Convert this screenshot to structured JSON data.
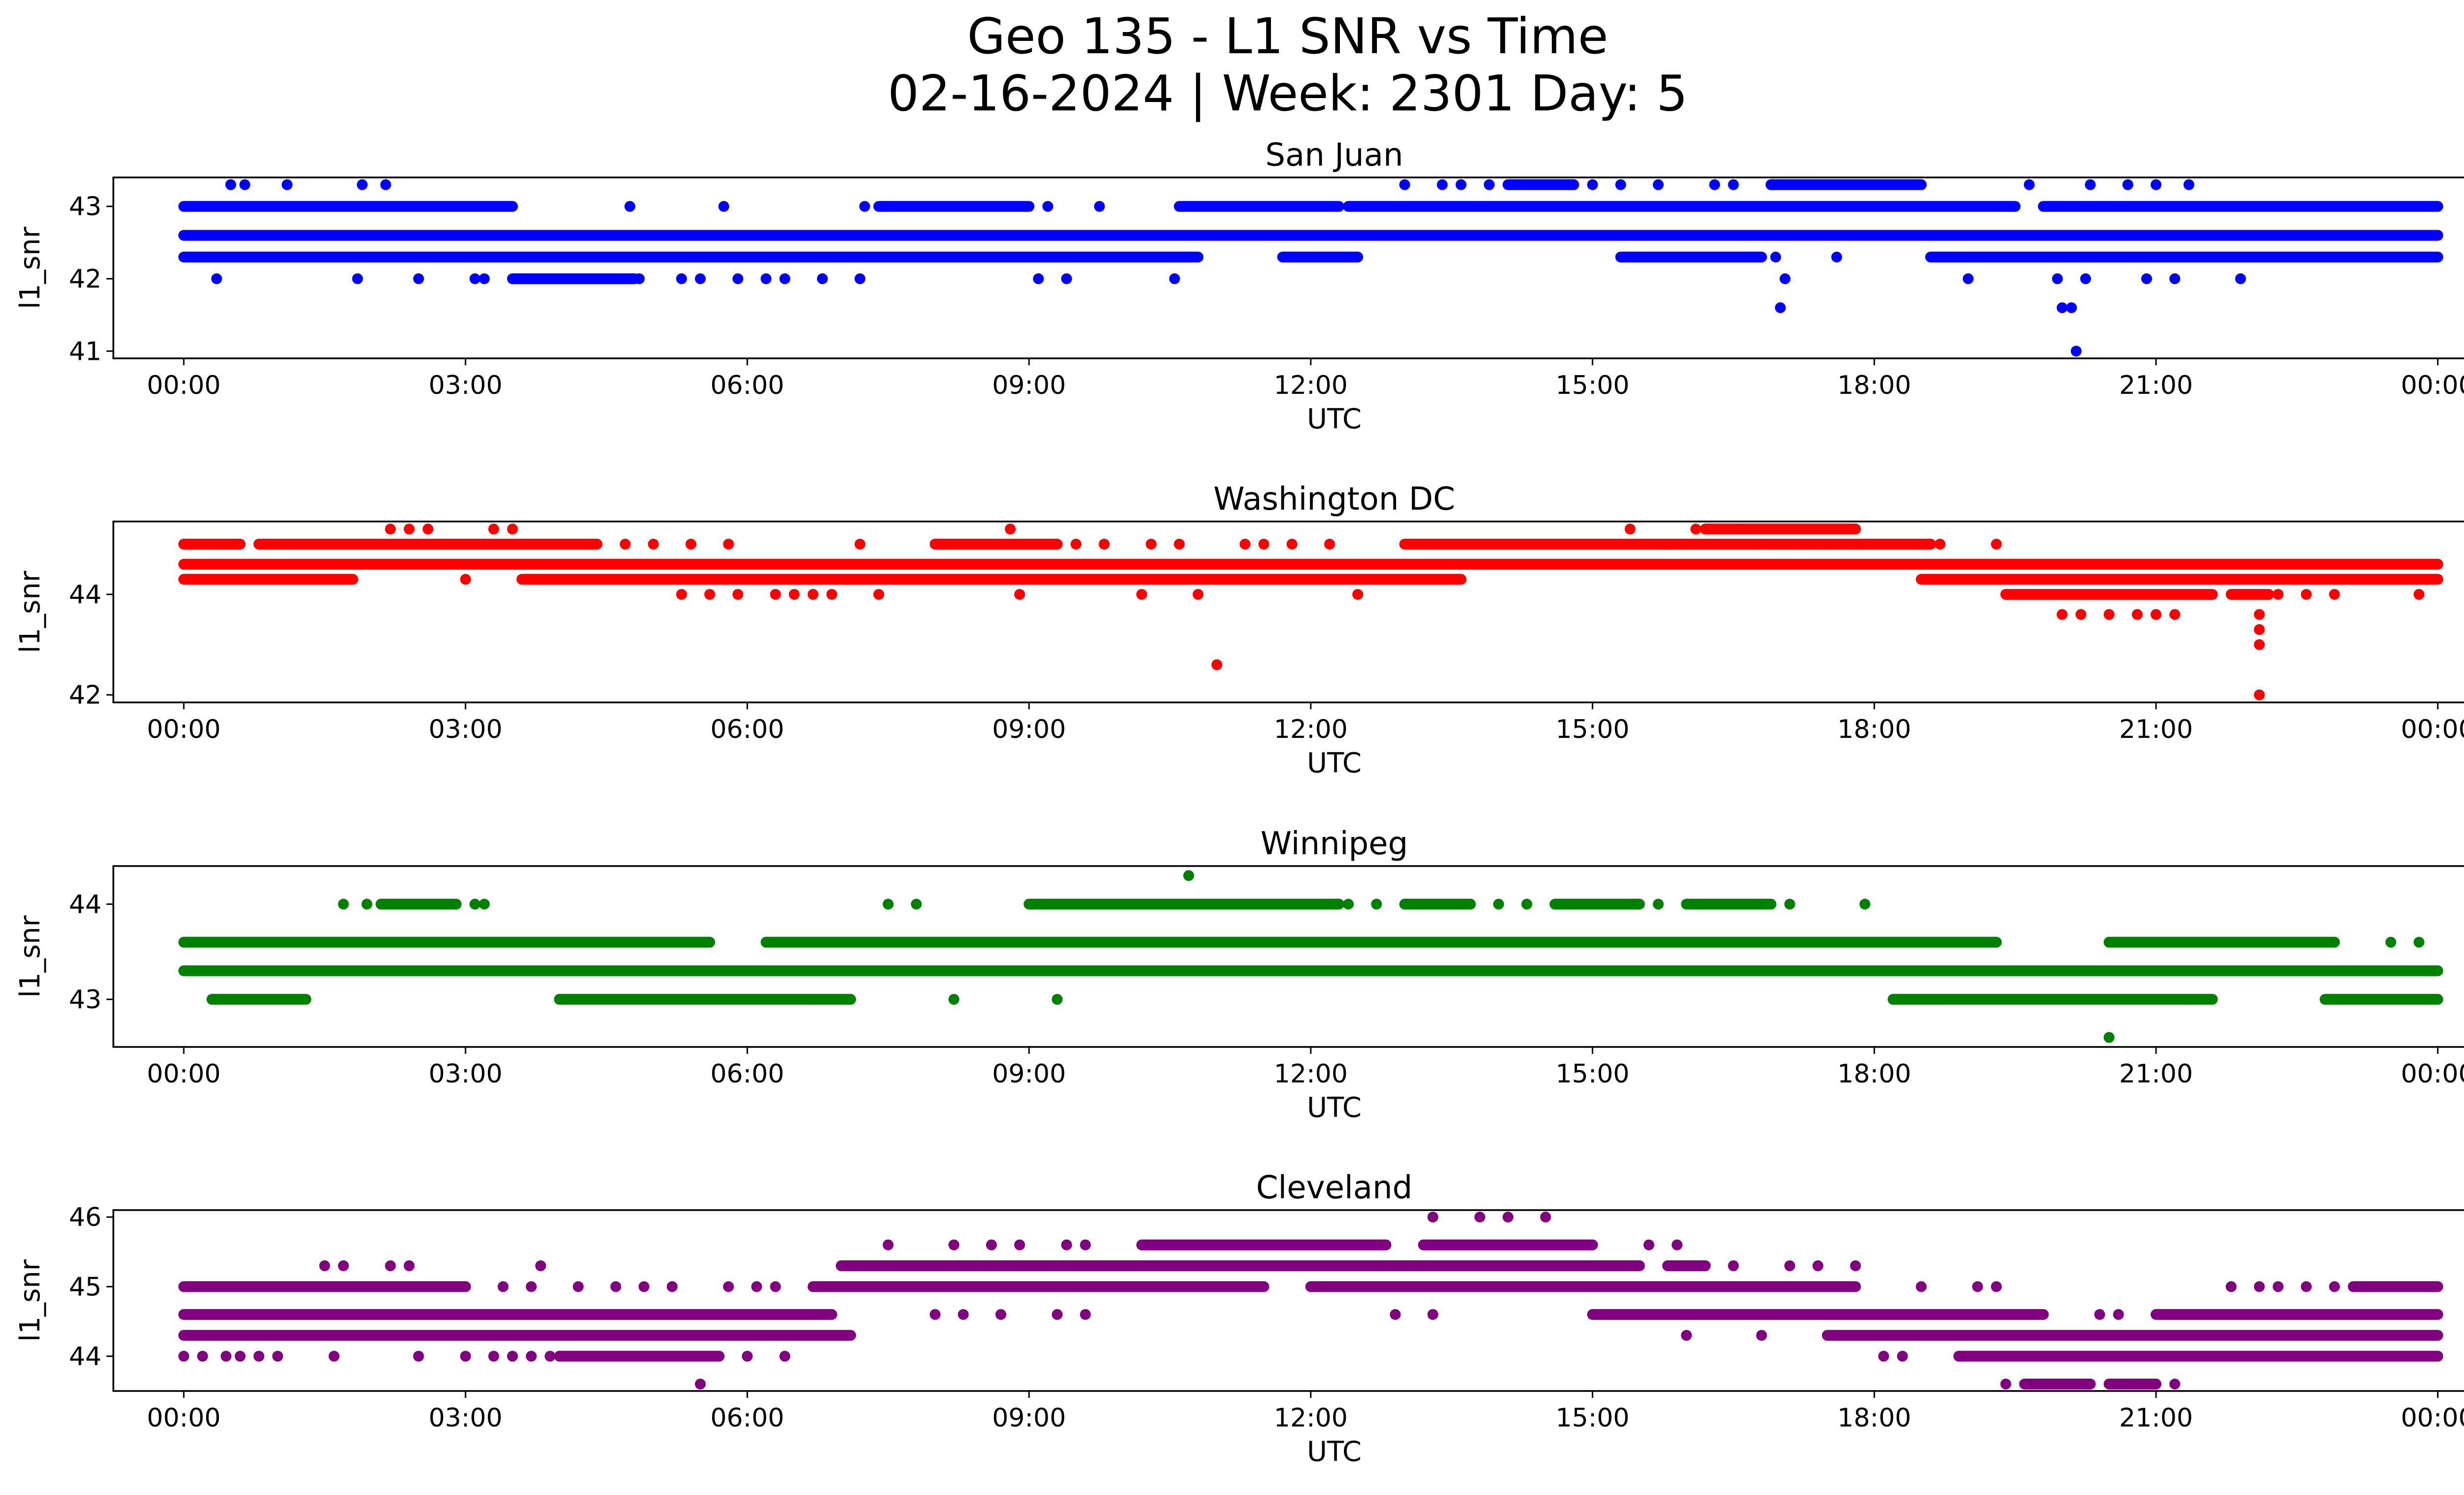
{
  "figure": {
    "title_line1": "Geo 135 - L1 SNR vs Time",
    "title_line2": "02-16-2024 | Week: 2301 Day: 5"
  },
  "chart_data": [
    {
      "type": "scatter",
      "title": "San Juan",
      "xlabel": "UTC",
      "ylabel": "l1_snr",
      "color": "#0000ff",
      "xlim": [
        -0.75,
        25.25
      ],
      "ylim": [
        40.9,
        43.4
      ],
      "x_ticks": [
        0,
        3,
        6,
        9,
        12,
        15,
        18,
        21,
        24
      ],
      "x_tick_labels": [
        "00:00",
        "03:00",
        "06:00",
        "09:00",
        "12:00",
        "15:00",
        "18:00",
        "21:00",
        "00:00"
      ],
      "y_ticks": [
        41,
        42,
        43
      ],
      "y_tick_labels": [
        "41",
        "42",
        "43"
      ],
      "bands": [
        {
          "y": 42.6,
          "start": 0,
          "end": 24
        },
        {
          "y": 42.3,
          "start": 0,
          "end": 10.8
        },
        {
          "y": 42.3,
          "start": 11.7,
          "end": 12.5
        },
        {
          "y": 42.3,
          "start": 15.3,
          "end": 16.8
        },
        {
          "y": 42.3,
          "start": 18.6,
          "end": 24
        },
        {
          "y": 43.0,
          "start": 0,
          "end": 3.5
        },
        {
          "y": 43.0,
          "start": 7.4,
          "end": 9.0
        },
        {
          "y": 43.0,
          "start": 10.6,
          "end": 12.3
        },
        {
          "y": 43.0,
          "start": 12.4,
          "end": 19.5
        },
        {
          "y": 43.0,
          "start": 19.8,
          "end": 24
        },
        {
          "y": 42.0,
          "start": 3.5,
          "end": 4.8
        },
        {
          "y": 43.3,
          "start": 14.1,
          "end": 14.8
        },
        {
          "y": 43.3,
          "start": 16.9,
          "end": 18.5
        }
      ],
      "points": [
        [
          0.35,
          42.0
        ],
        [
          0.5,
          43.3
        ],
        [
          0.65,
          43.3
        ],
        [
          1.1,
          43.3
        ],
        [
          1.85,
          42.0
        ],
        [
          1.9,
          43.3
        ],
        [
          2.15,
          43.3
        ],
        [
          2.5,
          42.0
        ],
        [
          3.1,
          42.0
        ],
        [
          3.2,
          42.0
        ],
        [
          4.85,
          42.0
        ],
        [
          4.75,
          43.0
        ],
        [
          5.3,
          42.0
        ],
        [
          5.5,
          42.0
        ],
        [
          5.75,
          43.0
        ],
        [
          5.9,
          42.0
        ],
        [
          6.2,
          42.0
        ],
        [
          6.4,
          42.0
        ],
        [
          6.8,
          42.0
        ],
        [
          7.2,
          42.0
        ],
        [
          7.25,
          43.0
        ],
        [
          9.1,
          42.0
        ],
        [
          9.2,
          43.0
        ],
        [
          9.4,
          42.0
        ],
        [
          9.75,
          43.0
        ],
        [
          10.55,
          42.0
        ],
        [
          13.0,
          43.3
        ],
        [
          13.4,
          43.3
        ],
        [
          13.6,
          43.3
        ],
        [
          13.9,
          43.3
        ],
        [
          15.0,
          43.3
        ],
        [
          15.3,
          43.3
        ],
        [
          15.7,
          43.3
        ],
        [
          16.3,
          43.3
        ],
        [
          16.5,
          43.3
        ],
        [
          16.6,
          42.3
        ],
        [
          16.95,
          42.3
        ],
        [
          17.0,
          41.6
        ],
        [
          17.05,
          42.0
        ],
        [
          17.6,
          42.3
        ],
        [
          19.0,
          42.0
        ],
        [
          19.65,
          43.3
        ],
        [
          19.95,
          42.0
        ],
        [
          20.0,
          41.6
        ],
        [
          20.1,
          41.6
        ],
        [
          20.15,
          41.0
        ],
        [
          20.25,
          42.0
        ],
        [
          20.3,
          43.3
        ],
        [
          20.6,
          42.3
        ],
        [
          20.7,
          43.3
        ],
        [
          20.9,
          42.0
        ],
        [
          21.0,
          43.3
        ],
        [
          21.2,
          42.0
        ],
        [
          21.35,
          43.3
        ],
        [
          21.9,
          42.0
        ]
      ]
    },
    {
      "type": "scatter",
      "title": "Washington DC",
      "xlabel": "UTC",
      "ylabel": "l1_snr",
      "color": "#ff0000",
      "xlim": [
        -0.75,
        25.25
      ],
      "ylim": [
        41.85,
        45.45
      ],
      "x_ticks": [
        0,
        3,
        6,
        9,
        12,
        15,
        18,
        21,
        24
      ],
      "x_tick_labels": [
        "00:00",
        "03:00",
        "06:00",
        "09:00",
        "12:00",
        "15:00",
        "18:00",
        "21:00",
        "00:00"
      ],
      "y_ticks": [
        42,
        44
      ],
      "y_tick_labels": [
        "42",
        "44"
      ],
      "bands": [
        {
          "y": 44.6,
          "start": 0,
          "end": 24
        },
        {
          "y": 44.3,
          "start": 0,
          "end": 1.8
        },
        {
          "y": 44.3,
          "start": 3.6,
          "end": 13.6
        },
        {
          "y": 44.3,
          "start": 18.5,
          "end": 24
        },
        {
          "y": 45.0,
          "start": 0,
          "end": 0.6
        },
        {
          "y": 45.0,
          "start": 0.8,
          "end": 4.4
        },
        {
          "y": 45.0,
          "start": 8.0,
          "end": 9.3
        },
        {
          "y": 45.0,
          "start": 13.0,
          "end": 18.6
        },
        {
          "y": 45.3,
          "start": 16.2,
          "end": 17.8
        },
        {
          "y": 44.0,
          "start": 19.4,
          "end": 21.6
        },
        {
          "y": 44.0,
          "start": 21.8,
          "end": 22.2
        }
      ],
      "points": [
        [
          2.2,
          45.3
        ],
        [
          2.4,
          45.3
        ],
        [
          2.6,
          45.3
        ],
        [
          3.0,
          44.3
        ],
        [
          3.3,
          45.3
        ],
        [
          3.5,
          45.3
        ],
        [
          3.7,
          44.3
        ],
        [
          4.7,
          45.0
        ],
        [
          5.0,
          45.0
        ],
        [
          5.3,
          44.0
        ],
        [
          5.4,
          45.0
        ],
        [
          5.6,
          44.0
        ],
        [
          5.8,
          45.0
        ],
        [
          5.9,
          44.0
        ],
        [
          6.3,
          44.0
        ],
        [
          6.5,
          44.0
        ],
        [
          6.7,
          44.0
        ],
        [
          6.9,
          44.0
        ],
        [
          7.2,
          45.0
        ],
        [
          7.4,
          44.0
        ],
        [
          8.8,
          45.3
        ],
        [
          8.9,
          44.0
        ],
        [
          9.5,
          45.0
        ],
        [
          9.8,
          45.0
        ],
        [
          10.2,
          44.0
        ],
        [
          10.3,
          45.0
        ],
        [
          10.6,
          45.0
        ],
        [
          10.8,
          44.0
        ],
        [
          11.0,
          42.6
        ],
        [
          11.3,
          45.0
        ],
        [
          11.5,
          45.0
        ],
        [
          11.8,
          45.0
        ],
        [
          12.2,
          45.0
        ],
        [
          12.5,
          44.0
        ],
        [
          15.4,
          45.3
        ],
        [
          15.8,
          45.0
        ],
        [
          16.1,
          45.3
        ],
        [
          16.6,
          45.3
        ],
        [
          16.9,
          45.0
        ],
        [
          17.2,
          45.0
        ],
        [
          17.5,
          45.0
        ],
        [
          17.8,
          45.0
        ],
        [
          18.7,
          45.0
        ],
        [
          19.3,
          45.0
        ],
        [
          20.0,
          43.6
        ],
        [
          20.2,
          43.6
        ],
        [
          20.5,
          43.6
        ],
        [
          20.8,
          43.6
        ],
        [
          21.0,
          43.6
        ],
        [
          21.2,
          43.6
        ],
        [
          21.4,
          44.6
        ],
        [
          22.1,
          43.6
        ],
        [
          22.1,
          43.3
        ],
        [
          22.1,
          43.0
        ],
        [
          22.1,
          42.0
        ],
        [
          22.3,
          44.0
        ],
        [
          22.6,
          44.0
        ],
        [
          22.9,
          44.0
        ],
        [
          23.8,
          44.0
        ]
      ]
    },
    {
      "type": "scatter",
      "title": "Winnipeg",
      "xlabel": "UTC",
      "ylabel": "l1_snr",
      "color": "#008000",
      "xlim": [
        -0.75,
        25.25
      ],
      "ylim": [
        42.5,
        44.4
      ],
      "x_ticks": [
        0,
        3,
        6,
        9,
        12,
        15,
        18,
        21,
        24
      ],
      "x_tick_labels": [
        "00:00",
        "03:00",
        "06:00",
        "09:00",
        "12:00",
        "15:00",
        "18:00",
        "21:00",
        "00:00"
      ],
      "y_ticks": [
        43,
        44
      ],
      "y_tick_labels": [
        "43",
        "44"
      ],
      "bands": [
        {
          "y": 43.3,
          "start": 0,
          "end": 24
        },
        {
          "y": 43.6,
          "start": 0,
          "end": 5.6
        },
        {
          "y": 43.6,
          "start": 6.2,
          "end": 19.3
        },
        {
          "y": 43.6,
          "start": 20.5,
          "end": 22.9
        },
        {
          "y": 43.0,
          "start": 0.3,
          "end": 1.3
        },
        {
          "y": 43.0,
          "start": 4.0,
          "end": 7.1
        },
        {
          "y": 43.0,
          "start": 18.2,
          "end": 21.6
        },
        {
          "y": 43.0,
          "start": 22.8,
          "end": 24
        },
        {
          "y": 44.0,
          "start": 2.1,
          "end": 2.9
        },
        {
          "y": 44.0,
          "start": 9.0,
          "end": 12.3
        },
        {
          "y": 44.0,
          "start": 13.0,
          "end": 13.7
        },
        {
          "y": 44.0,
          "start": 14.6,
          "end": 15.5
        },
        {
          "y": 44.0,
          "start": 16.0,
          "end": 16.9
        }
      ],
      "points": [
        [
          1.7,
          44.0
        ],
        [
          1.95,
          44.0
        ],
        [
          3.1,
          44.0
        ],
        [
          3.2,
          44.0
        ],
        [
          7.5,
          44.0
        ],
        [
          7.8,
          44.0
        ],
        [
          8.2,
          43.0
        ],
        [
          9.3,
          43.0
        ],
        [
          10.7,
          44.3
        ],
        [
          12.4,
          44.0
        ],
        [
          12.7,
          44.0
        ],
        [
          14.0,
          44.0
        ],
        [
          14.3,
          44.0
        ],
        [
          15.7,
          44.0
        ],
        [
          17.1,
          44.0
        ],
        [
          17.9,
          44.0
        ],
        [
          20.5,
          42.6
        ],
        [
          22.0,
          43.6
        ],
        [
          23.5,
          43.6
        ],
        [
          23.8,
          43.6
        ]
      ]
    },
    {
      "type": "scatter",
      "title": "Cleveland",
      "xlabel": "UTC",
      "ylabel": "l1_snr",
      "color": "#800080",
      "xlim": [
        -0.75,
        25.25
      ],
      "ylim": [
        43.5,
        46.1
      ],
      "x_ticks": [
        0,
        3,
        6,
        9,
        12,
        15,
        18,
        21,
        24
      ],
      "x_tick_labels": [
        "00:00",
        "03:00",
        "06:00",
        "09:00",
        "12:00",
        "15:00",
        "18:00",
        "21:00",
        "00:00"
      ],
      "y_ticks": [
        44,
        45,
        46
      ],
      "y_tick_labels": [
        "44",
        "45",
        "46"
      ],
      "bands": [
        {
          "y": 44.3,
          "start": 0,
          "end": 7.1
        },
        {
          "y": 44.3,
          "start": 17.5,
          "end": 24
        },
        {
          "y": 44.6,
          "start": 0,
          "end": 6.9
        },
        {
          "y": 44.6,
          "start": 15.0,
          "end": 19.8
        },
        {
          "y": 44.6,
          "start": 21.0,
          "end": 24
        },
        {
          "y": 45.0,
          "start": 0,
          "end": 3.0
        },
        {
          "y": 45.0,
          "start": 6.7,
          "end": 11.5
        },
        {
          "y": 45.0,
          "start": 12.0,
          "end": 17.8
        },
        {
          "y": 45.0,
          "start": 23.1,
          "end": 24
        },
        {
          "y": 45.3,
          "start": 7.0,
          "end": 15.5
        },
        {
          "y": 45.3,
          "start": 15.8,
          "end": 16.2
        },
        {
          "y": 45.6,
          "start": 10.2,
          "end": 12.8
        },
        {
          "y": 45.6,
          "start": 13.2,
          "end": 15.0
        },
        {
          "y": 44.0,
          "start": 4.0,
          "end": 5.7
        },
        {
          "y": 44.0,
          "start": 18.9,
          "end": 24
        },
        {
          "y": 43.6,
          "start": 19.6,
          "end": 20.3
        },
        {
          "y": 43.6,
          "start": 20.5,
          "end": 21.0
        }
      ],
      "points": [
        [
          0.0,
          44.0
        ],
        [
          0.2,
          44.0
        ],
        [
          0.45,
          44.0
        ],
        [
          0.6,
          44.0
        ],
        [
          0.8,
          44.0
        ],
        [
          1.0,
          44.0
        ],
        [
          1.5,
          45.3
        ],
        [
          1.6,
          44.0
        ],
        [
          1.7,
          45.3
        ],
        [
          2.2,
          45.3
        ],
        [
          2.4,
          45.3
        ],
        [
          2.5,
          44.0
        ],
        [
          3.0,
          44.0
        ],
        [
          3.3,
          44.0
        ],
        [
          3.5,
          44.0
        ],
        [
          3.8,
          45.3
        ],
        [
          3.7,
          44.0
        ],
        [
          3.9,
          44.0
        ],
        [
          3.4,
          45.0
        ],
        [
          3.7,
          45.0
        ],
        [
          4.2,
          45.0
        ],
        [
          4.6,
          45.0
        ],
        [
          4.9,
          45.0
        ],
        [
          5.2,
          45.0
        ],
        [
          5.5,
          43.6
        ],
        [
          5.8,
          45.0
        ],
        [
          6.1,
          45.0
        ],
        [
          6.0,
          44.0
        ],
        [
          6.4,
          44.0
        ],
        [
          6.3,
          45.0
        ],
        [
          8.0,
          44.6
        ],
        [
          8.3,
          44.6
        ],
        [
          8.7,
          44.6
        ],
        [
          9.3,
          44.6
        ],
        [
          9.6,
          44.6
        ],
        [
          7.5,
          45.6
        ],
        [
          8.2,
          45.6
        ],
        [
          8.6,
          45.6
        ],
        [
          8.9,
          45.6
        ],
        [
          9.4,
          45.6
        ],
        [
          9.6,
          45.6
        ],
        [
          12.9,
          44.6
        ],
        [
          13.3,
          44.6
        ],
        [
          13.3,
          46.0
        ],
        [
          13.8,
          46.0
        ],
        [
          14.1,
          46.0
        ],
        [
          14.5,
          46.0
        ],
        [
          15.6,
          45.6
        ],
        [
          15.9,
          45.6
        ],
        [
          16.0,
          44.3
        ],
        [
          16.2,
          45.3
        ],
        [
          16.5,
          45.3
        ],
        [
          16.8,
          44.3
        ],
        [
          17.1,
          45.3
        ],
        [
          17.4,
          45.3
        ],
        [
          17.8,
          45.3
        ],
        [
          18.1,
          44.0
        ],
        [
          18.3,
          44.0
        ],
        [
          18.5,
          45.0
        ],
        [
          19.1,
          45.0
        ],
        [
          19.4,
          43.6
        ],
        [
          19.3,
          45.0
        ],
        [
          20.4,
          44.6
        ],
        [
          20.6,
          44.6
        ],
        [
          20.3,
          43.6
        ],
        [
          21.2,
          43.6
        ],
        [
          22.0,
          44.0
        ],
        [
          22.1,
          45.0
        ],
        [
          22.3,
          45.0
        ],
        [
          22.6,
          45.0
        ],
        [
          22.9,
          45.0
        ],
        [
          21.8,
          45.0
        ]
      ]
    }
  ]
}
